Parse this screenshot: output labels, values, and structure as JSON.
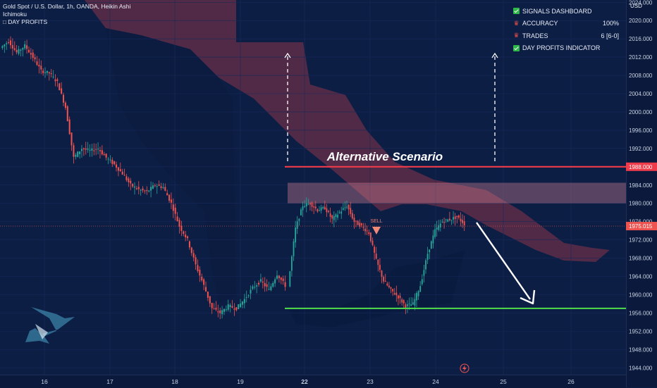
{
  "header": {
    "symbol": "Gold Spot / U.S. Dollar, 1h, OANDA, Heikin Ashi",
    "indicator": "Ichimoku",
    "brand": "DAY PROFITS"
  },
  "dashboard": {
    "title": "SIGNALS DASHBOARD",
    "rows": [
      {
        "label": "ACCURACY",
        "value": "100%"
      },
      {
        "label": "TRADES",
        "value": "6 [6-0]"
      }
    ],
    "footer": "DAY PROFITS INDICATOR"
  },
  "colors": {
    "background": "#0d1e45",
    "bull": "#26a69a",
    "bear": "#ef5350",
    "resistance": "#ef3b4a",
    "support": "#4cd24a",
    "cloud": "#8a3448"
  },
  "chart_data": {
    "type": "candlestick",
    "style": "Heikin Ashi",
    "interval": "1h",
    "currency": "USD",
    "x_ticks": [
      "16",
      "17",
      "18",
      "19",
      "22",
      "23",
      "24",
      "25",
      "26"
    ],
    "y_ticks": [
      2024,
      2020,
      2016,
      2012,
      2008,
      2004,
      2000,
      1996,
      1992,
      1988,
      1984,
      1980,
      1976,
      1972,
      1968,
      1964,
      1960,
      1956,
      1952,
      1948,
      1944
    ],
    "ylim": [
      1942.5,
      2024.5
    ],
    "current_price": "1975.015",
    "resistance_level": "1988.000",
    "support_level": 1957.0,
    "supply_zone": [
      1980,
      1984.5
    ],
    "annotation": "Alternative Scenario",
    "signal": "SELL",
    "price_path": [
      2014,
      2015.5,
      2013,
      2014.5,
      2012,
      2009,
      2008.5,
      2006.5,
      2001,
      1990,
      1992,
      1991.5,
      1992,
      1990,
      1988.5,
      1986.5,
      1984,
      1983,
      1982.5,
      1984,
      1983.5,
      1980,
      1975,
      1972,
      1966.5,
      1962,
      1957,
      1956,
      1957.5,
      1957,
      1959,
      1961.5,
      1963,
      1961,
      1964.5,
      1962,
      1974.5,
      1979.5,
      1980,
      1978.5,
      1979,
      1976.5,
      1978,
      1979.5,
      1976,
      1975,
      1973.5,
      1967.5,
      1963,
      1961,
      1959.5,
      1957.5,
      1958,
      1962,
      1969,
      1974,
      1976,
      1976.5,
      1977,
      1975.5
    ]
  }
}
